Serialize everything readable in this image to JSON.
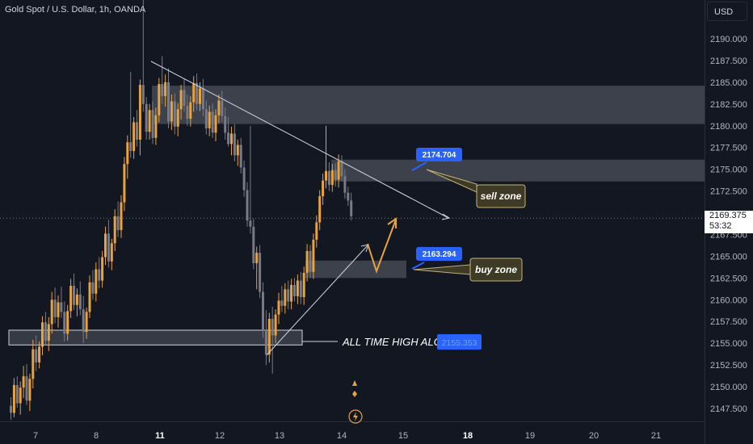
{
  "header": {
    "symbol_title": "Gold Spot / U.S. Dollar, 1h, OANDA",
    "currency_button": "USD"
  },
  "price_tag": {
    "price": "2169.375",
    "countdown": "53:32"
  },
  "chart_data": {
    "type": "candlestick",
    "title": "Gold Spot / U.S. Dollar, 1h, OANDA",
    "y_unit": "USD",
    "ylim": [
      2145.0,
      2195.5
    ],
    "y_ticks": [
      "2190.000",
      "2187.500",
      "2185.000",
      "2182.500",
      "2180.000",
      "2177.500",
      "2175.000",
      "2172.500",
      "2167.500",
      "2165.000",
      "2162.500",
      "2160.000",
      "2157.500",
      "2155.000",
      "2152.500",
      "2150.000",
      "2147.500"
    ],
    "x_ticks": [
      "7",
      "8",
      "11",
      "12",
      "13",
      "14",
      "15",
      "18",
      "19",
      "20",
      "21"
    ],
    "bold_x_ticks": [
      "11",
      "18"
    ],
    "current_price": 2169.375,
    "zones": [
      {
        "name": "upper-resistance",
        "from": 2180.2,
        "to": 2184.6
      },
      {
        "name": "sell-zone",
        "from": 2173.6,
        "to": 2176.1
      },
      {
        "name": "buy-zone",
        "from": 2162.5,
        "to": 2164.5
      },
      {
        "name": "ath-zone",
        "from": 2154.8,
        "to": 2156.5
      }
    ],
    "annotations": {
      "sell_price": "2174.704",
      "sell_label": "sell zone",
      "buy_price": "2163.294",
      "buy_label": "buy zone",
      "ath_label": "ALL TIME HIGH ALGO",
      "ath_price": "2155.353"
    },
    "candles": [
      [
        2147.8,
        2148.8,
        2146.2,
        2147.0
      ],
      [
        2147.0,
        2151.0,
        2146.5,
        2150.2
      ],
      [
        2150.2,
        2151.2,
        2147.6,
        2148.1
      ],
      [
        2148.1,
        2150.6,
        2146.8,
        2149.9
      ],
      [
        2149.9,
        2152.4,
        2148.7,
        2151.2
      ],
      [
        2151.2,
        2152.6,
        2147.9,
        2148.4
      ],
      [
        2148.4,
        2151.5,
        2147.2,
        2150.9
      ],
      [
        2150.9,
        2155.4,
        2149.8,
        2154.3
      ],
      [
        2154.3,
        2155.9,
        2151.8,
        2152.8
      ],
      [
        2152.8,
        2155.2,
        2152.1,
        2154.6
      ],
      [
        2154.6,
        2158.1,
        2153.6,
        2157.4
      ],
      [
        2157.4,
        2158.6,
        2154.8,
        2155.3
      ],
      [
        2155.3,
        2158.0,
        2154.1,
        2157.2
      ],
      [
        2157.2,
        2160.9,
        2156.1,
        2160.0
      ],
      [
        2160.0,
        2161.4,
        2157.3,
        2158.0
      ],
      [
        2158.0,
        2160.5,
        2156.8,
        2159.7
      ],
      [
        2159.7,
        2161.5,
        2157.9,
        2158.6
      ],
      [
        2158.6,
        2159.8,
        2155.2,
        2156.1
      ],
      [
        2156.1,
        2159.4,
        2155.3,
        2158.7
      ],
      [
        2158.7,
        2162.4,
        2157.9,
        2161.6
      ],
      [
        2161.6,
        2163.0,
        2158.8,
        2159.4
      ],
      [
        2159.4,
        2161.3,
        2158.1,
        2160.6
      ],
      [
        2160.6,
        2162.1,
        2158.2,
        2158.9
      ],
      [
        2158.9,
        2160.4,
        2155.0,
        2156.3
      ],
      [
        2156.3,
        2159.1,
        2155.5,
        2158.6
      ],
      [
        2158.6,
        2162.8,
        2157.9,
        2162.0
      ],
      [
        2162.0,
        2163.4,
        2160.0,
        2160.7
      ],
      [
        2160.7,
        2164.3,
        2159.8,
        2163.5
      ],
      [
        2163.5,
        2164.9,
        2161.3,
        2162.2
      ],
      [
        2162.2,
        2165.6,
        2161.4,
        2164.9
      ],
      [
        2164.9,
        2168.4,
        2164.0,
        2167.6
      ],
      [
        2167.6,
        2169.2,
        2163.7,
        2164.4
      ],
      [
        2164.4,
        2167.0,
        2163.4,
        2166.5
      ],
      [
        2166.5,
        2170.4,
        2165.6,
        2169.6
      ],
      [
        2169.6,
        2171.3,
        2167.2,
        2168.0
      ],
      [
        2168.0,
        2172.0,
        2167.1,
        2171.2
      ],
      [
        2171.2,
        2176.4,
        2170.2,
        2175.6
      ],
      [
        2175.6,
        2178.9,
        2173.9,
        2178.1
      ],
      [
        2178.1,
        2186.2,
        2176.3,
        2177.1
      ],
      [
        2177.1,
        2181.0,
        2176.2,
        2180.4
      ],
      [
        2180.4,
        2181.8,
        2177.6,
        2178.4
      ],
      [
        2178.4,
        2185.3,
        2176.6,
        2184.7
      ],
      [
        2184.7,
        2195.4,
        2181.6,
        2182.5
      ],
      [
        2182.5,
        2183.3,
        2178.4,
        2179.3
      ],
      [
        2179.3,
        2182.5,
        2178.4,
        2181.8
      ],
      [
        2181.8,
        2182.8,
        2177.9,
        2178.6
      ],
      [
        2178.6,
        2182.1,
        2177.8,
        2181.2
      ],
      [
        2181.2,
        2185.5,
        2180.4,
        2184.8
      ],
      [
        2184.8,
        2188.0,
        2182.5,
        2183.4
      ],
      [
        2183.4,
        2185.9,
        2182.2,
        2185.0
      ],
      [
        2185.0,
        2186.6,
        2179.7,
        2180.5
      ],
      [
        2180.5,
        2183.6,
        2179.5,
        2182.8
      ],
      [
        2182.8,
        2183.7,
        2179.0,
        2179.9
      ],
      [
        2179.9,
        2182.6,
        2178.8,
        2181.9
      ],
      [
        2181.9,
        2184.7,
        2180.7,
        2184.1
      ],
      [
        2184.1,
        2185.4,
        2181.6,
        2182.3
      ],
      [
        2182.3,
        2183.6,
        2180.0,
        2180.8
      ],
      [
        2180.8,
        2183.4,
        2179.9,
        2182.7
      ],
      [
        2182.7,
        2185.7,
        2181.6,
        2184.9
      ],
      [
        2184.9,
        2186.0,
        2181.8,
        2182.5
      ],
      [
        2182.5,
        2185.0,
        2181.7,
        2184.3
      ],
      [
        2184.3,
        2185.4,
        2181.1,
        2181.9
      ],
      [
        2181.9,
        2182.9,
        2179.0,
        2179.7
      ],
      [
        2179.7,
        2182.3,
        2178.8,
        2181.6
      ],
      [
        2181.6,
        2182.6,
        2178.6,
        2179.2
      ],
      [
        2179.2,
        2181.9,
        2178.2,
        2181.2
      ],
      [
        2181.2,
        2183.6,
        2180.3,
        2182.9
      ],
      [
        2182.9,
        2184.0,
        2180.4,
        2181.1
      ],
      [
        2181.1,
        2182.1,
        2178.4,
        2179.2
      ],
      [
        2179.2,
        2181.0,
        2177.6,
        2177.9
      ],
      [
        2177.9,
        2179.9,
        2176.6,
        2179.1
      ],
      [
        2179.1,
        2180.2,
        2175.9,
        2176.6
      ],
      [
        2176.6,
        2178.4,
        2175.4,
        2177.8
      ],
      [
        2177.8,
        2178.6,
        2174.5,
        2175.2
      ],
      [
        2175.2,
        2176.0,
        2171.8,
        2172.6
      ],
      [
        2172.6,
        2173.5,
        2168.4,
        2169.1
      ],
      [
        2169.1,
        2180.0,
        2167.6,
        2168.4
      ],
      [
        2168.4,
        2169.3,
        2163.5,
        2164.2
      ],
      [
        2164.2,
        2166.1,
        2161.2,
        2165.4
      ],
      [
        2165.4,
        2166.3,
        2160.2,
        2160.9
      ],
      [
        2160.9,
        2162.0,
        2155.6,
        2156.4
      ],
      [
        2156.4,
        2158.8,
        2152.5,
        2153.7
      ],
      [
        2153.7,
        2158.5,
        2152.8,
        2157.8
      ],
      [
        2157.8,
        2159.2,
        2151.5,
        2155.9
      ],
      [
        2155.9,
        2158.9,
        2155.0,
        2158.3
      ],
      [
        2158.3,
        2160.8,
        2157.2,
        2159.9
      ],
      [
        2159.9,
        2161.6,
        2158.6,
        2159.3
      ],
      [
        2159.3,
        2161.9,
        2158.4,
        2161.2
      ],
      [
        2161.2,
        2162.2,
        2158.9,
        2159.8
      ],
      [
        2159.8,
        2162.4,
        2158.9,
        2161.7
      ],
      [
        2161.7,
        2162.5,
        2159.8,
        2160.4
      ],
      [
        2160.4,
        2162.9,
        2159.5,
        2162.2
      ],
      [
        2162.2,
        2163.2,
        2159.5,
        2160.3
      ],
      [
        2160.3,
        2163.8,
        2159.4,
        2163.1
      ],
      [
        2163.1,
        2166.4,
        2162.1,
        2165.6
      ],
      [
        2165.6,
        2166.3,
        2162.5,
        2163.2
      ],
      [
        2163.2,
        2167.6,
        2162.4,
        2166.9
      ],
      [
        2166.9,
        2169.7,
        2166.0,
        2168.9
      ],
      [
        2168.9,
        2172.6,
        2168.0,
        2171.9
      ],
      [
        2171.9,
        2174.5,
        2170.9,
        2173.7
      ],
      [
        2173.7,
        2180.0,
        2172.8,
        2174.8
      ],
      [
        2174.8,
        2175.8,
        2172.5,
        2173.2
      ],
      [
        2173.2,
        2175.6,
        2172.4,
        2174.9
      ],
      [
        2174.9,
        2175.7,
        2173.0,
        2173.8
      ],
      [
        2173.8,
        2176.7,
        2172.9,
        2175.9
      ],
      [
        2175.9,
        2176.6,
        2173.6,
        2174.2
      ],
      [
        2174.2,
        2175.0,
        2171.6,
        2172.3
      ],
      [
        2172.3,
        2173.0,
        2170.8,
        2171.4
      ],
      [
        2171.4,
        2172.3,
        2169.1,
        2169.6
      ]
    ]
  }
}
